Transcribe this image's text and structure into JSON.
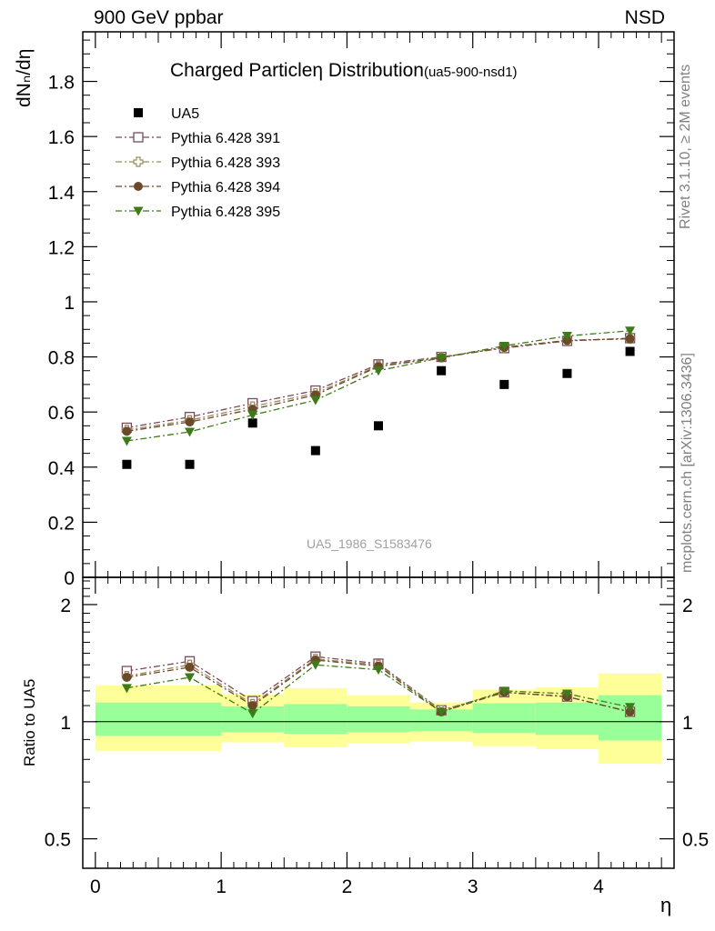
{
  "header": {
    "left_text": "900 GeV ppbar",
    "right_text": "NSD"
  },
  "title": {
    "main": "Charged Particleη Distribution",
    "small": "(ua5-900-nsd1)"
  },
  "ylabel_main": "dNₙ/dη",
  "ylabel_ratio": "Ratio to UA5",
  "xlabel": "η",
  "side_text": {
    "rivet": "Rivet 3.1.10, ≥ 2M events",
    "mcplots": "mcplots.cern.ch [arXiv:1306.3436]"
  },
  "watermark": "UA5_1986_S1583476",
  "colors": {
    "data": "#000000",
    "p391": "#7a4a5e",
    "p393": "#9a8a5a",
    "p394": "#6b4a2a",
    "p395": "#3f7a1a",
    "band_yellow": "#ffff99",
    "band_green": "#99ff99"
  },
  "chart_data": [
    {
      "type": "scatter",
      "panel": "main",
      "xlim": [
        -0.1,
        4.6
      ],
      "ylim": [
        0,
        1.98
      ],
      "yticks": [
        "0",
        "0.2",
        "0.4",
        "0.6",
        "0.8",
        "1",
        "1.2",
        "1.4",
        "1.6",
        "1.8"
      ],
      "ytick_values": [
        0,
        0.2,
        0.4,
        0.6,
        0.8,
        1.0,
        1.2,
        1.4,
        1.6,
        1.8
      ],
      "x": [
        0.25,
        0.75,
        1.25,
        1.75,
        2.25,
        2.75,
        3.25,
        3.75,
        4.25
      ],
      "legend_position": "top-left",
      "series": [
        {
          "name": "UA5",
          "key": "data",
          "marker": "square",
          "values": [
            0.41,
            0.41,
            0.56,
            0.46,
            0.55,
            0.75,
            0.7,
            0.74,
            0.82
          ]
        },
        {
          "name": "Pythia 6.428 391",
          "key": "p391",
          "marker": "open-square",
          "values": [
            0.543,
            0.582,
            0.632,
            0.678,
            0.773,
            0.8,
            0.832,
            0.858,
            0.868
          ]
        },
        {
          "name": "Pythia 6.428 393",
          "key": "p393",
          "marker": "open-cross",
          "values": [
            0.535,
            0.57,
            0.62,
            0.668,
            0.768,
            0.799,
            0.834,
            0.86,
            0.866
          ]
        },
        {
          "name": "Pythia 6.428 394",
          "key": "p394",
          "marker": "circle",
          "values": [
            0.53,
            0.564,
            0.61,
            0.662,
            0.765,
            0.797,
            0.835,
            0.86,
            0.866
          ]
        },
        {
          "name": "Pythia 6.428 395",
          "key": "p395",
          "marker": "triangle-down",
          "values": [
            0.495,
            0.528,
            0.589,
            0.643,
            0.75,
            0.797,
            0.84,
            0.876,
            0.895
          ]
        }
      ]
    },
    {
      "type": "scatter",
      "panel": "ratio",
      "ylabel": "Ratio to UA5",
      "xlabel": "η",
      "log_y": true,
      "ylim": [
        0.42,
        2.35
      ],
      "xlim": [
        -0.1,
        4.6
      ],
      "xticks": [
        "0",
        "1",
        "2",
        "3",
        "4"
      ],
      "xtick_values": [
        0,
        1,
        2,
        3,
        4
      ],
      "yticks": [
        "0.5",
        "1",
        "2"
      ],
      "ytick_values": [
        0.5,
        1,
        2
      ],
      "x": [
        0.25,
        0.75,
        1.25,
        1.75,
        2.25,
        2.75,
        3.25,
        3.75,
        4.25
      ],
      "bins": [
        [
          0,
          1
        ],
        [
          1,
          1.5
        ],
        [
          1.5,
          2
        ],
        [
          2,
          2.5
        ],
        [
          2.5,
          3
        ],
        [
          3,
          3.5
        ],
        [
          3.5,
          4
        ],
        [
          4,
          4.5
        ]
      ],
      "band_yellow": [
        [
          0.84,
          1.24
        ],
        [
          0.885,
          1.175
        ],
        [
          0.86,
          1.22
        ],
        [
          0.88,
          1.17
        ],
        [
          0.89,
          1.12
        ],
        [
          0.865,
          1.21
        ],
        [
          0.85,
          1.225
        ],
        [
          0.78,
          1.33
        ]
      ],
      "band_green": [
        [
          0.92,
          1.12
        ],
        [
          0.94,
          1.095
        ],
        [
          0.93,
          1.11
        ],
        [
          0.94,
          1.095
        ],
        [
          0.945,
          1.075
        ],
        [
          0.935,
          1.115
        ],
        [
          0.925,
          1.12
        ],
        [
          0.895,
          1.17
        ]
      ],
      "series": [
        {
          "name": "Pythia 6.428 391",
          "key": "p391",
          "marker": "open-square",
          "values": [
            1.35,
            1.43,
            1.13,
            1.47,
            1.41,
            1.07,
            1.19,
            1.16,
            1.06
          ]
        },
        {
          "name": "Pythia 6.428 393",
          "key": "p393",
          "marker": "open-cross",
          "values": [
            1.31,
            1.4,
            1.11,
            1.45,
            1.4,
            1.07,
            1.19,
            1.16,
            1.06
          ]
        },
        {
          "name": "Pythia 6.428 394",
          "key": "p394",
          "marker": "circle",
          "values": [
            1.3,
            1.38,
            1.1,
            1.44,
            1.39,
            1.06,
            1.19,
            1.16,
            1.06
          ]
        },
        {
          "name": "Pythia 6.428 395",
          "key": "p395",
          "marker": "triangle-down",
          "values": [
            1.22,
            1.3,
            1.05,
            1.4,
            1.36,
            1.06,
            1.2,
            1.18,
            1.09
          ]
        }
      ]
    }
  ]
}
